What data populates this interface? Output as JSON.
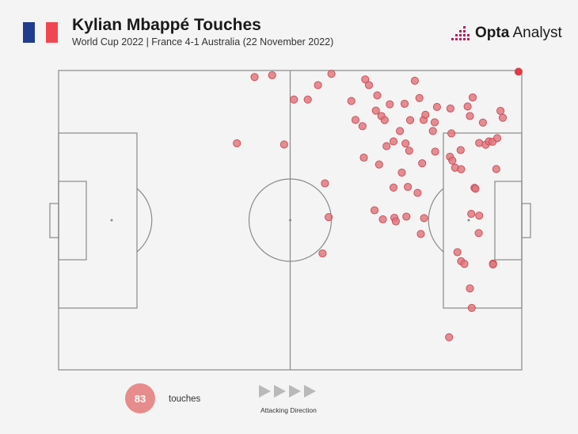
{
  "header": {
    "title": "Kylian Mbappé Touches",
    "subtitle": "World Cup 2022 | France 4-1 Australia (22 November 2022)",
    "flag_colors": [
      "#1f3c8e",
      "#f4f4f4",
      "#ef4752"
    ]
  },
  "brand": {
    "bold": "Opta",
    "rest": " Analyst",
    "icon": "opta-dots-icon"
  },
  "legend": {
    "count": "83",
    "count_label": "touches",
    "direction_label": "Attacking Direction",
    "arrow_icon": "triangle-right-icon"
  },
  "colors": {
    "touch_fill": "#e0757d",
    "touch_stroke": "#c94a55",
    "highlight": "#e23a48",
    "pitch_line": "#8a8a8a"
  },
  "chart_data": {
    "type": "scatter",
    "title": "Kylian Mbappé Touches",
    "xlabel": "",
    "ylabel": "",
    "xlim": [
      0,
      100
    ],
    "ylim": [
      0,
      100
    ],
    "points": [
      [
        42.3,
        97.8
      ],
      [
        46.1,
        98.4
      ],
      [
        50.8,
        90.3
      ],
      [
        53.8,
        90.3
      ],
      [
        56.0,
        95.1
      ],
      [
        58.9,
        98.9
      ],
      [
        63.2,
        89.8
      ],
      [
        64.1,
        83.5
      ],
      [
        65.6,
        81.4
      ],
      [
        66.2,
        97.0
      ],
      [
        67.0,
        95.1
      ],
      [
        68.8,
        91.7
      ],
      [
        68.5,
        86.6
      ],
      [
        69.7,
        84.8
      ],
      [
        70.4,
        83.4
      ],
      [
        71.5,
        88.7
      ],
      [
        72.3,
        76.3
      ],
      [
        73.7,
        79.8
      ],
      [
        74.7,
        88.9
      ],
      [
        75.9,
        83.4
      ],
      [
        75.7,
        73.2
      ],
      [
        76.9,
        96.6
      ],
      [
        77.9,
        90.8
      ],
      [
        78.8,
        83.5
      ],
      [
        79.2,
        85.2
      ],
      [
        81.2,
        82.7
      ],
      [
        80.8,
        79.8
      ],
      [
        78.5,
        69.0
      ],
      [
        74.9,
        75.6
      ],
      [
        74.1,
        65.9
      ],
      [
        72.3,
        60.9
      ],
      [
        70.8,
        74.7
      ],
      [
        69.2,
        68.6
      ],
      [
        65.9,
        70.9
      ],
      [
        68.2,
        53.3
      ],
      [
        70.0,
        50.3
      ],
      [
        72.5,
        50.8
      ],
      [
        72.8,
        49.6
      ],
      [
        75.1,
        51.2
      ],
      [
        75.4,
        61.1
      ],
      [
        77.5,
        59.1
      ],
      [
        78.2,
        45.4
      ],
      [
        78.9,
        50.7
      ],
      [
        81.3,
        72.9
      ],
      [
        81.7,
        87.8
      ],
      [
        84.5,
        71.2
      ],
      [
        85.6,
        67.5
      ],
      [
        85.0,
        69.9
      ],
      [
        84.6,
        87.3
      ],
      [
        84.8,
        79.0
      ],
      [
        86.8,
        73.4
      ],
      [
        86.9,
        67.0
      ],
      [
        88.3,
        88.0
      ],
      [
        88.8,
        84.8
      ],
      [
        89.4,
        91.0
      ],
      [
        90.8,
        75.8
      ],
      [
        91.6,
        82.6
      ],
      [
        92.2,
        75.2
      ],
      [
        92.9,
        76.3
      ],
      [
        93.7,
        76.2
      ],
      [
        94.7,
        77.4
      ],
      [
        94.5,
        67.1
      ],
      [
        95.4,
        86.5
      ],
      [
        95.9,
        84.2
      ],
      [
        86.1,
        39.3
      ],
      [
        86.9,
        36.3
      ],
      [
        87.6,
        35.4
      ],
      [
        88.8,
        27.2
      ],
      [
        89.1,
        52.1
      ],
      [
        89.8,
        60.8
      ],
      [
        90.0,
        60.5
      ],
      [
        90.8,
        51.5
      ],
      [
        90.7,
        45.7
      ],
      [
        93.8,
        35.5
      ],
      [
        93.8,
        35.2
      ],
      [
        89.2,
        20.7
      ],
      [
        84.3,
        10.9
      ],
      [
        57.5,
        62.3
      ],
      [
        58.3,
        51.0
      ],
      [
        57.0,
        38.9
      ],
      [
        38.5,
        75.7
      ],
      [
        48.7,
        75.3
      ],
      [
        99.3,
        99.6
      ]
    ]
  }
}
